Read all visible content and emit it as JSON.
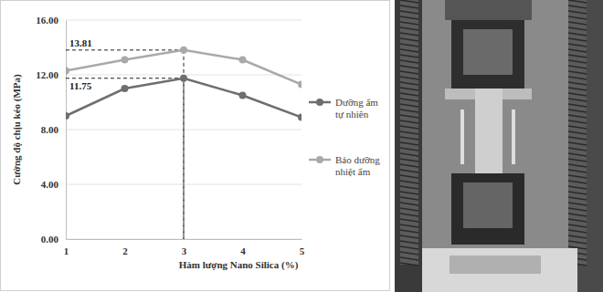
{
  "chart_data": {
    "type": "line",
    "x_label": "Hàm lượng Nano Silica (%)",
    "y_label": "Cường độ chịu kéo (MPa)",
    "x": [
      1,
      2,
      3,
      4,
      5
    ],
    "xlim": [
      1,
      5
    ],
    "xticks": [
      1,
      2,
      3,
      4,
      5
    ],
    "ylim": [
      0,
      16
    ],
    "yticks": [
      {
        "value": 0,
        "label": "0.00"
      },
      {
        "value": 4,
        "label": "4.00"
      },
      {
        "value": 8,
        "label": "8.00"
      },
      {
        "value": 12,
        "label": "12.00"
      },
      {
        "value": 16,
        "label": "16.00"
      }
    ],
    "grid": true,
    "legend": "right",
    "series": [
      {
        "name": "Dưỡng ẩm tự nhiên",
        "color": "#6e6e6e",
        "marker": "circle",
        "values": [
          9.0,
          11.0,
          11.75,
          10.5,
          8.9
        ]
      },
      {
        "name": "Bảo dưỡng nhiệt ẩm",
        "color": "#a9a9a9",
        "marker": "circle",
        "values": [
          12.3,
          13.1,
          13.81,
          13.1,
          11.3
        ]
      }
    ],
    "annotations": [
      {
        "x": 3,
        "y": 13.81,
        "text": "13.81"
      },
      {
        "x": 3,
        "y": 11.75,
        "text": "11.75"
      }
    ]
  }
}
